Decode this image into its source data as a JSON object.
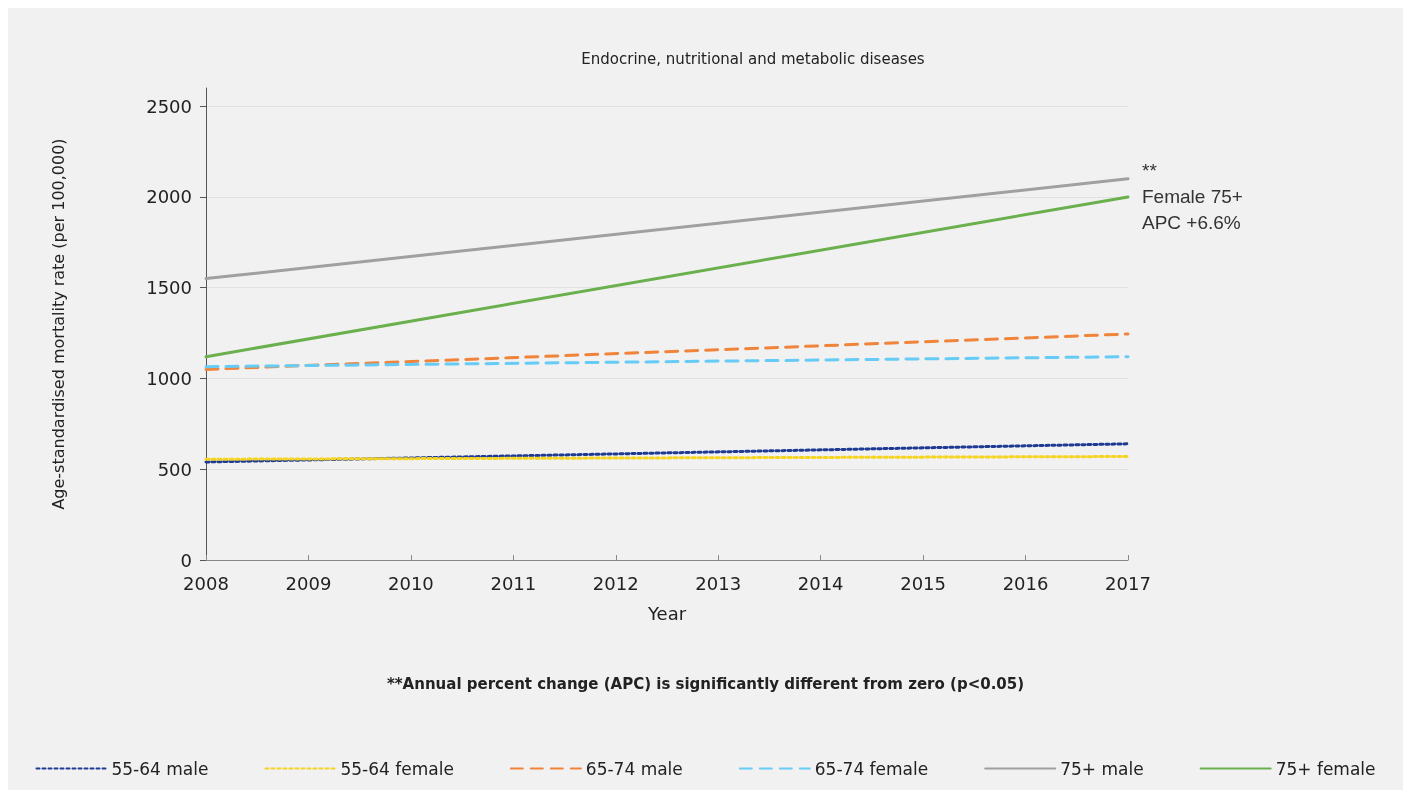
{
  "chart_data": {
    "type": "line",
    "title": "Endocrine, nutritional and metabolic diseases",
    "xlabel": "Year",
    "ylabel": "Age-standardised mortality rate (per 100,000)",
    "x": [
      2008,
      2017
    ],
    "xlim": [
      2008,
      2017
    ],
    "xticks": [
      2008,
      2009,
      2010,
      2011,
      2012,
      2013,
      2014,
      2015,
      2016,
      2017
    ],
    "ylim": [
      0,
      2600
    ],
    "yticks": [
      0,
      500,
      1000,
      1500,
      2000,
      2500
    ],
    "grid": "y",
    "legend": "bottom",
    "marker": "none",
    "series": [
      {
        "name": "55-64 male",
        "color": "#1f3a93",
        "line_style": "dotted",
        "values": [
          540,
          640
        ]
      },
      {
        "name": "55-64 female",
        "color": "#f5d422",
        "line_style": "dotted",
        "values": [
          555,
          570
        ]
      },
      {
        "name": "65-74 male",
        "color": "#f0843a",
        "line_style": "dashed",
        "values": [
          1050,
          1245
        ]
      },
      {
        "name": "65-74 female",
        "color": "#66ccf5",
        "line_style": "dashed",
        "values": [
          1065,
          1120
        ]
      },
      {
        "name": "75+ male",
        "color": "#a0a0a0",
        "line_style": "solid",
        "values": [
          1550,
          2100
        ]
      },
      {
        "name": "75+ female",
        "color": "#6ab04c",
        "line_style": "solid",
        "values": [
          1120,
          2000
        ]
      }
    ],
    "annotations": [
      {
        "text": "**\nFemale 75+\nAPC +6.6%",
        "x": 2017,
        "y": 2000
      },
      "**Annual percent change (APC) is significantly different from zero (p<0.05)"
    ]
  }
}
